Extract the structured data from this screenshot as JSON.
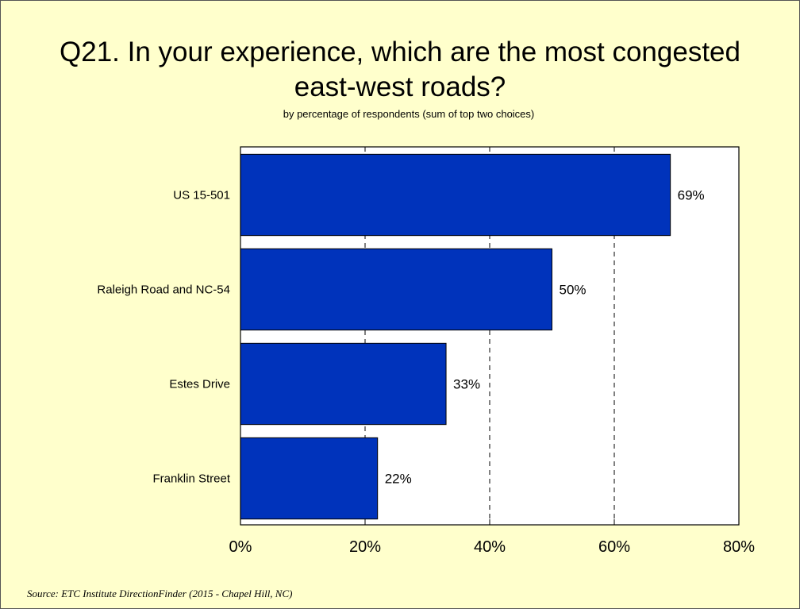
{
  "title_line1": "Q21. In your experience, which are the most congested",
  "title_line2": "east-west roads?",
  "subtitle": "by percentage of respondents (sum of top two choices)",
  "source": "Source:  ETC Institute DirectionFinder (2015 - Chapel Hill, NC)",
  "colors": {
    "bar": "#0033bb",
    "background": "#ffffcc",
    "plot_bg": "#ffffff"
  },
  "chart_data": {
    "type": "bar",
    "orientation": "horizontal",
    "title": "Q21. In your experience, which are the most congested east-west roads?",
    "subtitle": "by percentage of respondents (sum of top two choices)",
    "categories": [
      "US 15-501",
      "Raleigh Road and NC-54",
      "Estes Drive",
      "Franklin Street"
    ],
    "values": [
      69,
      50,
      33,
      22
    ],
    "value_labels": [
      "69%",
      "50%",
      "33%",
      "22%"
    ],
    "xlim": [
      0,
      80
    ],
    "xticks": [
      0,
      20,
      40,
      60,
      80
    ],
    "xtick_labels": [
      "0%",
      "20%",
      "40%",
      "60%",
      "80%"
    ],
    "grid": "vertical dashed",
    "legend": "none"
  }
}
